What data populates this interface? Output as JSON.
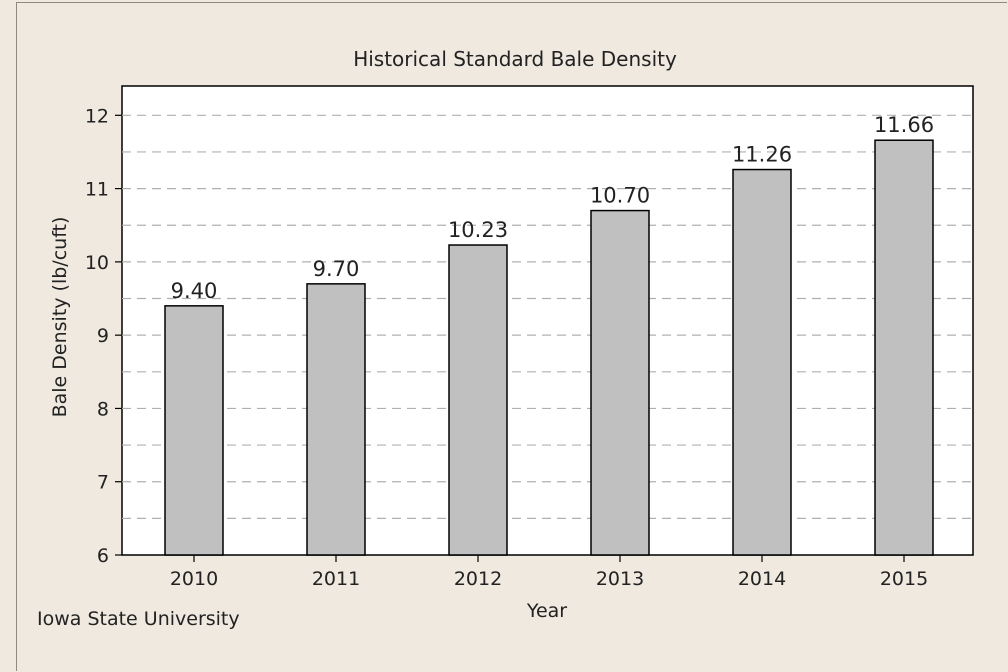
{
  "chart_data": {
    "type": "bar",
    "title": "Historical Standard Bale Density",
    "xlabel": "Year",
    "ylabel": "Bale Density (lb/cuft)",
    "categories": [
      "2010",
      "2011",
      "2012",
      "2013",
      "2014",
      "2015"
    ],
    "values": [
      9.4,
      9.7,
      10.23,
      10.7,
      11.26,
      11.66
    ],
    "data_labels": [
      "9.40",
      "9.70",
      "10.23",
      "10.70",
      "11.26",
      "11.66"
    ],
    "ylim": [
      6,
      12.4
    ],
    "yticks": [
      6,
      7,
      8,
      9,
      10,
      11,
      12
    ],
    "grid": true,
    "grid_style": "dashed horizontal at 0.5 intervals",
    "bar_color": "#c0c0c0",
    "bar_edge_color": "#000000"
  },
  "footer": {
    "source": "Iowa State University"
  },
  "colors": {
    "background": "#efe9df",
    "plot_background": "#ffffff",
    "grid": "#b0b0b0"
  }
}
